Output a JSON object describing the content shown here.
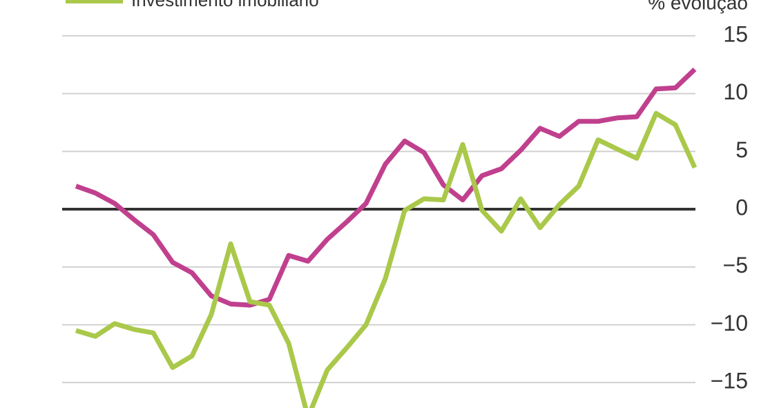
{
  "chart_data": {
    "type": "line",
    "y_axis_label": "% evolução",
    "legend": "top-left",
    "categories": [
      null,
      null,
      null,
      null,
      null,
      null,
      null,
      null,
      null,
      null,
      null,
      null,
      null,
      null,
      null,
      null,
      null,
      null,
      null,
      null,
      null,
      null,
      null,
      null,
      null,
      null,
      null,
      null,
      null,
      null,
      null,
      null,
      null
    ],
    "series": [
      {
        "color": "#c0408e",
        "values": [
          2.0,
          1.4,
          0.5,
          -0.9,
          -2.2,
          -4.6,
          -5.5,
          -7.5,
          -8.2,
          -8.3,
          -7.8,
          -4.0,
          -4.5,
          -2.6,
          -1.1,
          0.5,
          3.9,
          5.9,
          4.9,
          2.1,
          0.8,
          2.9,
          3.5,
          5.1,
          7.0,
          6.3,
          7.6,
          7.6,
          7.9,
          8.0,
          10.4,
          10.5,
          12.1
        ]
      },
      {
        "name": "Investimento imobiliário",
        "color": "#aac84a",
        "values": [
          -10.5,
          -11.0,
          -9.9,
          -10.4,
          -10.7,
          -13.7,
          -12.7,
          -9.1,
          -3.0,
          -8.0,
          -8.3,
          -11.6,
          -18.0,
          -13.9,
          -12.0,
          -10.0,
          -6.0,
          -0.1,
          0.9,
          0.8,
          5.6,
          -0.1,
          -1.9,
          0.9,
          -1.6,
          0.4,
          2.0,
          6.0,
          5.2,
          4.4,
          8.3,
          7.3,
          3.6
        ]
      }
    ],
    "ylim": [
      -17.2,
      18.1
    ],
    "yticks": [
      {
        "value": -15,
        "label": "−15"
      },
      {
        "value": -10,
        "label": "−10"
      },
      {
        "value": -5,
        "label": "−5"
      },
      0,
      5,
      10,
      15
    ],
    "grid": true
  }
}
